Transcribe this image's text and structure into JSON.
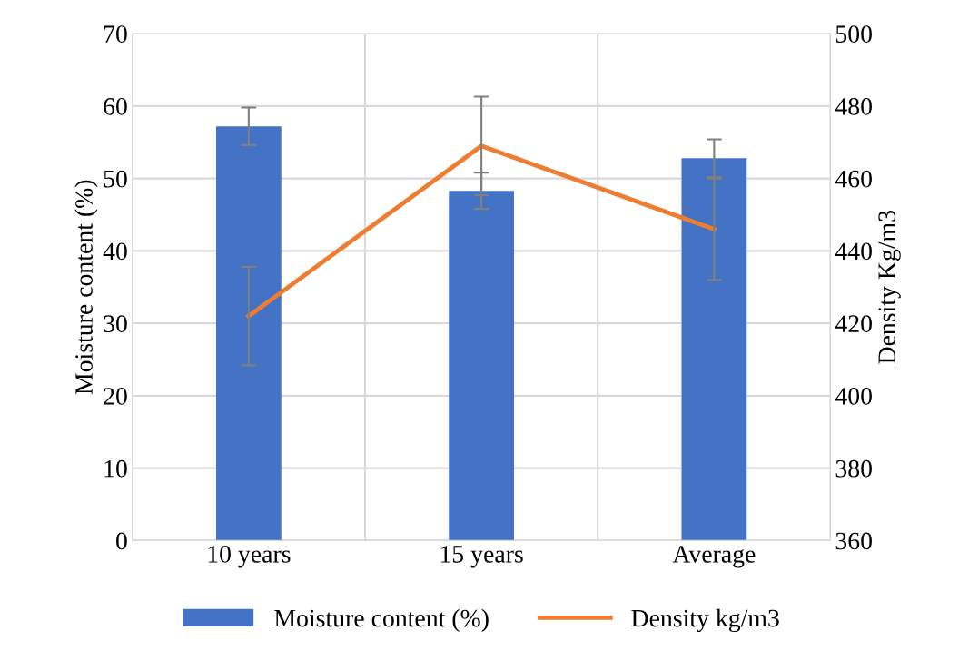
{
  "chart_data": {
    "type": "bar",
    "ylabel": "Moisture content (%)",
    "y2label": "Density Kg/m3",
    "categories": [
      "10 years",
      "15 years",
      "Average"
    ],
    "series": [
      {
        "name": "Moisture content (%)",
        "color": "#4472c4",
        "values": [
          57.2,
          48.3,
          52.8
        ],
        "errors": [
          2.6,
          2.5,
          2.6
        ]
      },
      {
        "name": "Density kg/m3",
        "type": "line",
        "axis": "y2",
        "color": "#ed7d31",
        "values": [
          422,
          469,
          446
        ],
        "errors": [
          13.6,
          13.6,
          14
        ],
        "marker": "none"
      }
    ],
    "ylim": [
      0,
      70
    ],
    "yticks": [
      0,
      10,
      20,
      30,
      40,
      50,
      60,
      70
    ],
    "y2lim": [
      360,
      500
    ],
    "y2ticks": [
      360,
      380,
      400,
      420,
      440,
      460,
      480,
      500
    ],
    "grid": true,
    "legend": "bottom"
  }
}
